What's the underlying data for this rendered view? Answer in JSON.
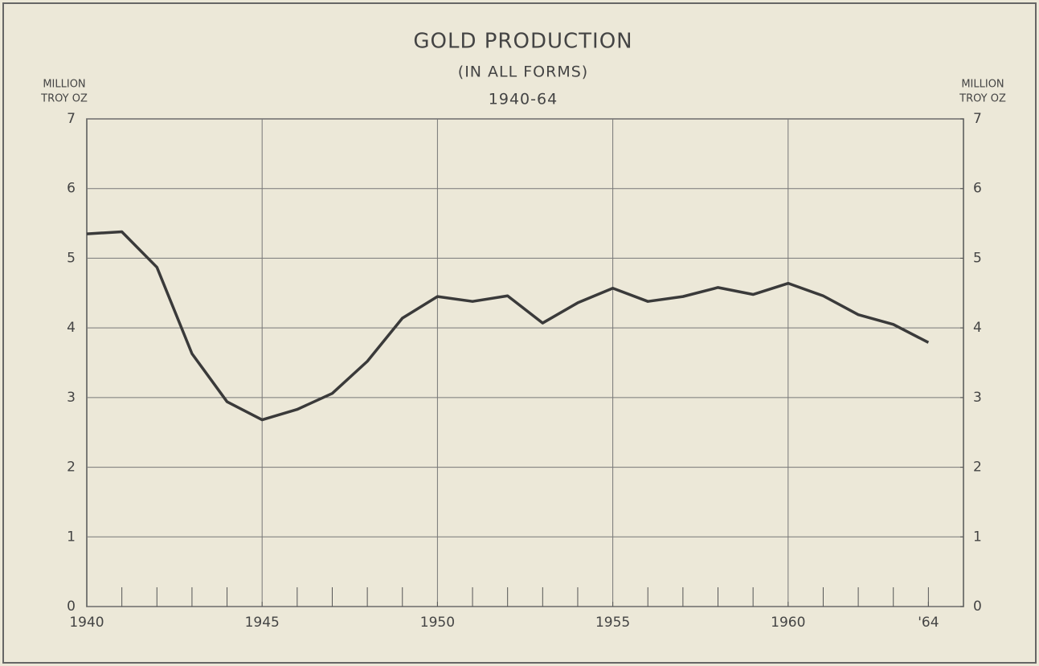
{
  "chart_data": {
    "type": "line",
    "title": "GOLD PRODUCTION",
    "subtitle": "(IN ALL FORMS)",
    "period": "1940-64",
    "y_label": [
      "MILLION",
      "TROY OZ"
    ],
    "y2_label": [
      "MILLION",
      "TROY OZ"
    ],
    "x": [
      1940,
      1941,
      1942,
      1943,
      1944,
      1945,
      1946,
      1947,
      1948,
      1949,
      1950,
      1951,
      1952,
      1953,
      1954,
      1955,
      1956,
      1957,
      1958,
      1959,
      1960,
      1961,
      1962,
      1963,
      1964
    ],
    "series": [
      {
        "name": "Gold production",
        "color": "#3a3a3a",
        "values": [
          5.35,
          5.38,
          4.87,
          3.63,
          2.94,
          2.68,
          2.83,
          3.06,
          3.52,
          4.14,
          4.45,
          4.38,
          4.46,
          4.07,
          4.36,
          4.57,
          4.38,
          4.45,
          4.58,
          4.48,
          4.64,
          4.46,
          4.19,
          4.05,
          3.79
        ]
      }
    ],
    "xlim": [
      1940,
      1965
    ],
    "xticks": [
      1940,
      1945,
      1950,
      1955,
      1960,
      {
        "value": 1964,
        "label": "'64"
      }
    ],
    "x_minor_ticks": [
      1941,
      1942,
      1943,
      1944,
      1946,
      1947,
      1948,
      1949,
      1951,
      1952,
      1953,
      1954,
      1956,
      1957,
      1958,
      1959,
      1961,
      1962,
      1963,
      1964
    ],
    "x_grid": [
      1945,
      1950,
      1955,
      1960
    ],
    "ylim": [
      0,
      7
    ],
    "yticks": [
      0,
      1,
      2,
      3,
      4,
      5,
      6,
      7
    ],
    "y2lim": [
      0,
      7
    ],
    "y2ticks": [
      0,
      1,
      2,
      3,
      4,
      5,
      6,
      7
    ],
    "grid": true
  }
}
